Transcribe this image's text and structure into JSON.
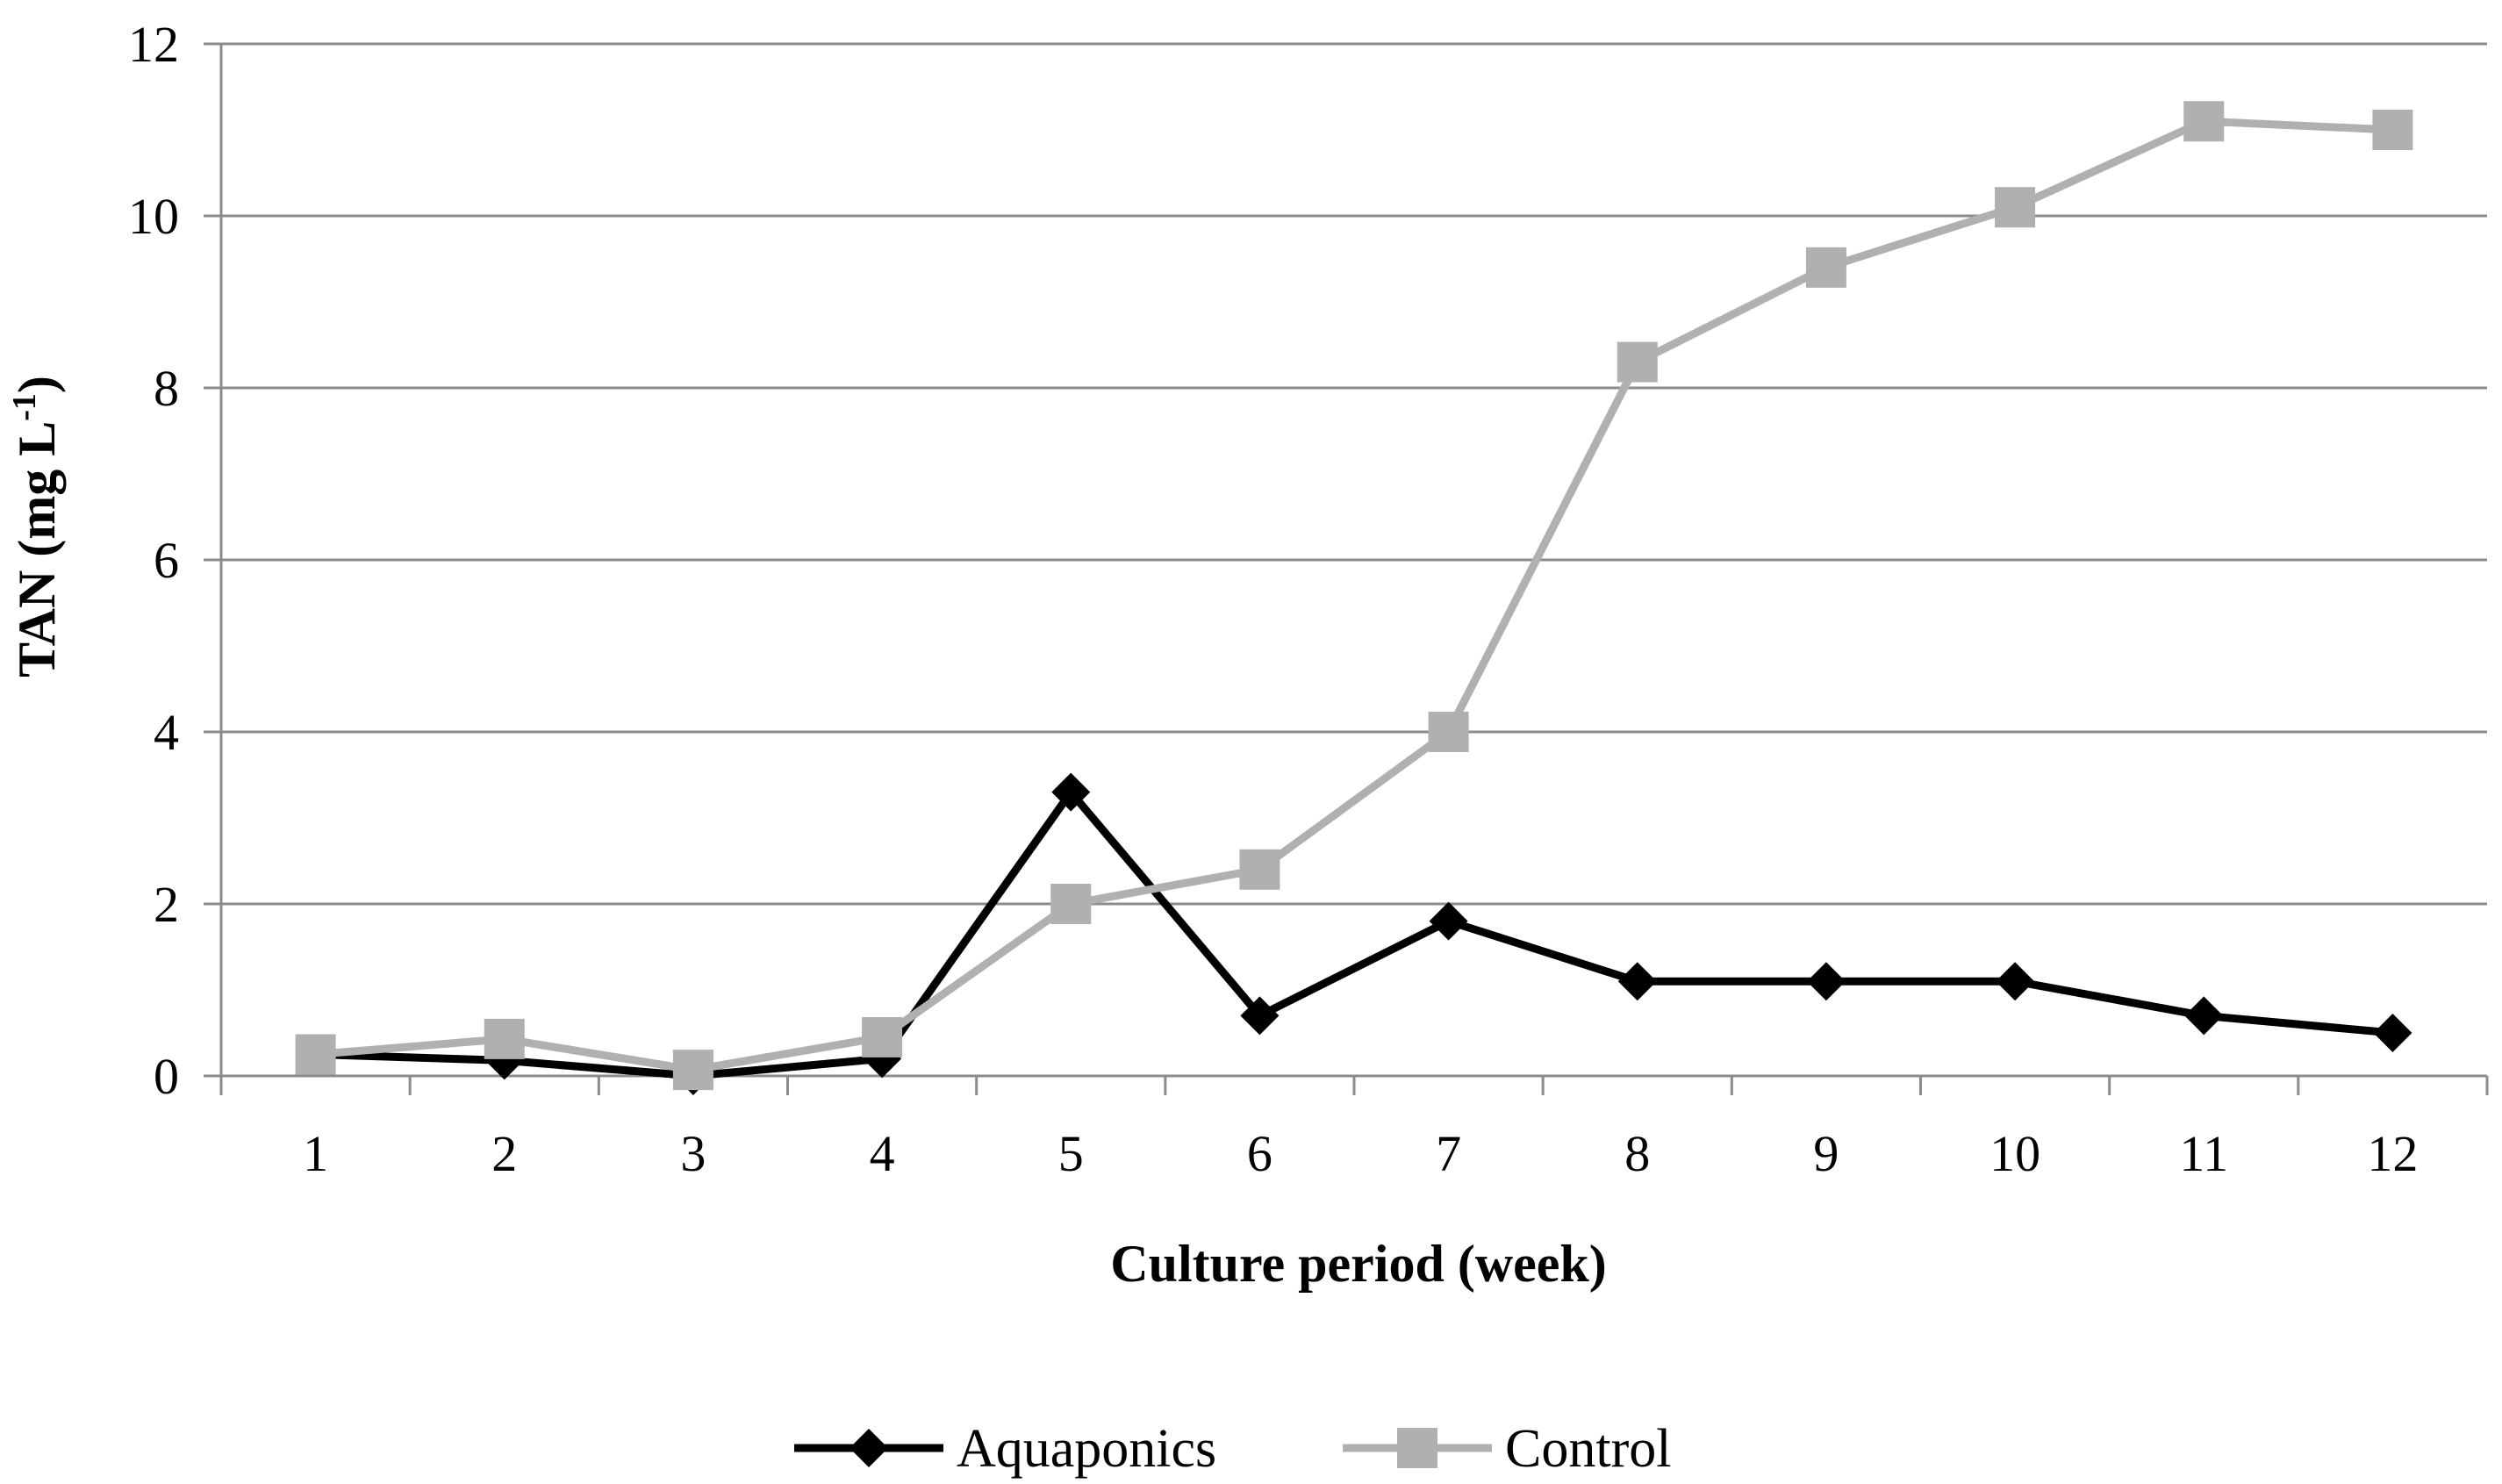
{
  "chart_data": {
    "type": "line",
    "title": "",
    "xlabel": "Culture period (week)",
    "ylabel_main": "TAN (mg L",
    "ylabel_sup": "-1",
    "ylabel_close": ")",
    "categories": [
      "1",
      "2",
      "3",
      "4",
      "5",
      "6",
      "7",
      "8",
      "9",
      "10",
      "11",
      "12"
    ],
    "ylim": [
      0,
      12
    ],
    "yticks": [
      "0",
      "2",
      "4",
      "6",
      "8",
      "10",
      "12"
    ],
    "grid": true,
    "legend_position": "bottom",
    "series": [
      {
        "name": "Aquaponics",
        "color": "#000000",
        "marker": "diamond",
        "values": [
          0.25,
          0.18,
          0.0,
          0.2,
          3.3,
          0.7,
          1.8,
          1.1,
          1.1,
          1.1,
          0.7,
          0.5
        ]
      },
      {
        "name": "Control",
        "color": "#b0b0b0",
        "marker": "square",
        "values": [
          0.25,
          0.43,
          0.07,
          0.45,
          2.0,
          2.4,
          4.0,
          8.3,
          9.4,
          10.1,
          11.1,
          11.0
        ]
      }
    ]
  }
}
